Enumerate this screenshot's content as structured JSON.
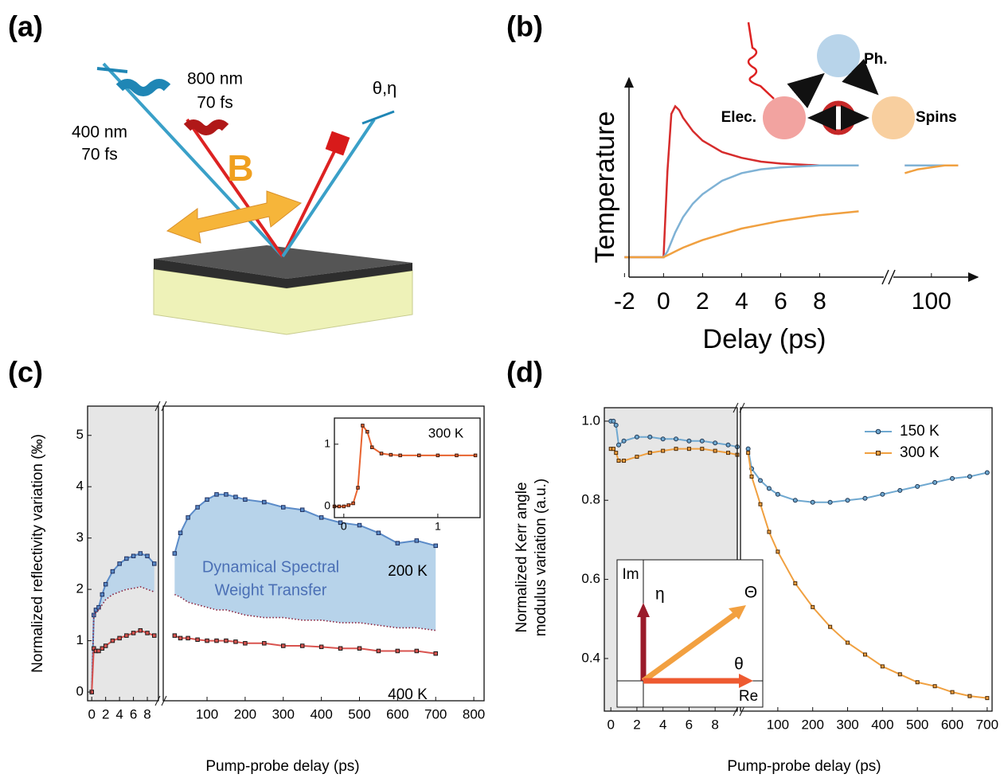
{
  "figure_labels": [
    "(a)",
    "(b)",
    "(c)",
    "(d)"
  ],
  "diagram_a": {
    "pump_label": [
      "400 nm",
      "70 fs"
    ],
    "probe_label": [
      "800 nm",
      "70 fs"
    ],
    "kerr_label": "θ,η",
    "field_label": "B"
  },
  "chart_data": [
    {
      "type": "line",
      "xlabel": "Delay (ps)",
      "ylabel": "Temperature",
      "x_segments": [
        [
          -2.3,
          11
        ],
        [
          95,
          106
        ]
      ],
      "ylim": [
        0,
        1
      ],
      "xticks": [
        -2,
        0,
        2,
        4,
        6,
        8,
        100
      ],
      "x": [
        -2,
        -1,
        0,
        0.2,
        0.4,
        0.6,
        0.8,
        1,
        1.5,
        2,
        3,
        4,
        5,
        6,
        8,
        10,
        11,
        96,
        98,
        100,
        102,
        104
      ],
      "series": [
        {
          "name": "Elec.",
          "color": "#d62c2c",
          "values": [
            0.05,
            0.05,
            0.05,
            0.5,
            0.8,
            0.84,
            0.82,
            0.78,
            0.71,
            0.66,
            0.6,
            0.57,
            0.55,
            0.54,
            0.53,
            0.53,
            null,
            0.53,
            0.53,
            0.53,
            0.53,
            0.53
          ]
        },
        {
          "name": "Ph.",
          "color": "#7fb2d5",
          "values": [
            0.05,
            0.05,
            0.05,
            0.08,
            0.13,
            0.18,
            0.22,
            0.26,
            0.33,
            0.38,
            0.45,
            0.49,
            0.51,
            0.52,
            0.53,
            0.53,
            null,
            0.53,
            0.53,
            0.53,
            0.53,
            0.53
          ]
        },
        {
          "name": "Spins",
          "color": "#f0a040",
          "values": [
            0.05,
            0.05,
            0.05,
            0.06,
            0.07,
            0.08,
            0.09,
            0.1,
            0.12,
            0.14,
            0.17,
            0.2,
            0.22,
            0.24,
            0.27,
            0.29,
            null,
            0.49,
            0.51,
            0.52,
            0.53,
            0.53
          ]
        }
      ]
    },
    {
      "type": "line",
      "xlabel": "Pump-probe delay (ps)",
      "ylabel": [
        "Normalized reflectivity variation (‰)"
      ],
      "x_segments": [
        [
          -0.6,
          9.6
        ],
        [
          -15,
          827
        ]
      ],
      "ylim": [
        -0.17,
        5.57
      ],
      "xticks": [
        0,
        2,
        4,
        6,
        8,
        100,
        200,
        300,
        400,
        500,
        600,
        700,
        800
      ],
      "yticks": [
        0,
        1,
        2,
        3,
        4,
        5
      ],
      "shaded_segment": 0,
      "annotations": [
        "Dynamical Spectral",
        "Weight Transfer"
      ],
      "fill_between": {
        "series": [
          0,
          1
        ],
        "color": "#b7d3ea"
      },
      "x": [
        0,
        0.3,
        0.6,
        1,
        1.5,
        2,
        3,
        4,
        5,
        6,
        7,
        8,
        9,
        15,
        30,
        50,
        75,
        100,
        125,
        150,
        175,
        200,
        250,
        300,
        350,
        400,
        450,
        500,
        550,
        600,
        650,
        700
      ],
      "series": [
        {
          "name": "200 K",
          "color": "#5b8bc8",
          "marker": "square",
          "marker_color": "#1f2f5e",
          "values": [
            0,
            1.5,
            1.6,
            1.65,
            1.9,
            2.1,
            2.35,
            2.5,
            2.6,
            2.65,
            2.7,
            2.65,
            2.5,
            2.7,
            3.1,
            3.4,
            3.6,
            3.75,
            3.85,
            3.85,
            3.8,
            3.75,
            3.7,
            3.6,
            3.55,
            3.4,
            3.3,
            3.25,
            3.1,
            2.9,
            2.95,
            2.85
          ]
        },
        {
          "color": "#8a1f3a",
          "dash": "dotted",
          "values": [
            0,
            1.5,
            1.55,
            1.6,
            1.7,
            1.8,
            1.9,
            1.95,
            2.0,
            2.02,
            2.05,
            2.0,
            1.95,
            1.9,
            1.85,
            1.75,
            1.7,
            1.65,
            1.6,
            1.6,
            1.55,
            1.5,
            1.45,
            1.45,
            1.4,
            1.4,
            1.35,
            1.35,
            1.3,
            1.25,
            1.25,
            1.2
          ]
        },
        {
          "name": "400 K",
          "color": "#d9534f",
          "marker": "square",
          "marker_color": "#1a1a1a",
          "values": [
            0,
            0.85,
            0.8,
            0.8,
            0.85,
            0.9,
            1.0,
            1.05,
            1.1,
            1.15,
            1.2,
            1.15,
            1.1,
            1.1,
            1.05,
            1.05,
            1.02,
            1.0,
            1.0,
            1.0,
            0.98,
            0.95,
            0.95,
            0.9,
            0.9,
            0.88,
            0.85,
            0.85,
            0.8,
            0.8,
            0.8,
            0.75
          ]
        }
      ]
    },
    {
      "type": "line",
      "x_segments": [
        [
          -0.1,
          1.45
        ]
      ],
      "ylim": [
        -0.18,
        1.42
      ],
      "xticks": [
        0,
        1
      ],
      "yticks": [
        0,
        1
      ],
      "x": [
        -0.1,
        -0.05,
        0,
        0.05,
        0.1,
        0.15,
        0.2,
        0.25,
        0.3,
        0.4,
        0.5,
        0.6,
        0.8,
        1,
        1.2,
        1.4
      ],
      "series": [
        {
          "name": "300 K",
          "color": "#e8632f",
          "marker": "square",
          "marker_color": "#3a1a10",
          "values": [
            0,
            0,
            0,
            0.02,
            0.05,
            0.3,
            1.3,
            1.2,
            0.95,
            0.85,
            0.83,
            0.82,
            0.82,
            0.82,
            0.82,
            0.82
          ]
        }
      ]
    },
    {
      "type": "line",
      "xlabel": "Pump-probe delay (ps)",
      "ylabel": [
        "Normalized Kerr angle",
        "modulus variation (a.u.)"
      ],
      "x_segments": [
        [
          -0.5,
          9.7
        ],
        [
          -7,
          714
        ]
      ],
      "ylim": [
        0.267,
        1.034
      ],
      "xticks": [
        0,
        2,
        4,
        6,
        8,
        100,
        200,
        300,
        400,
        500,
        600,
        700
      ],
      "yticks": [
        0.4,
        0.6,
        0.8,
        {
          "value": 1,
          "label": "1.0"
        }
      ],
      "shaded_segment": 0,
      "legend": "upper right",
      "vector_diagram": {
        "im": "Im",
        "re": "Re",
        "eta": "η",
        "theta_mod": "Θ",
        "theta": "θ"
      },
      "x": [
        0,
        0.2,
        0.4,
        0.6,
        1,
        2,
        3,
        4,
        5,
        6,
        7,
        8,
        9,
        9.7,
        15,
        25,
        50,
        75,
        100,
        150,
        200,
        250,
        300,
        350,
        400,
        450,
        500,
        550,
        600,
        650,
        700
      ],
      "series": [
        {
          "name": "150 K",
          "color": "#6fa8d0",
          "marker": "circle",
          "marker_color": "#1f3550",
          "values": [
            1,
            1,
            0.99,
            0.94,
            0.95,
            0.96,
            0.96,
            0.955,
            0.955,
            0.95,
            0.95,
            0.945,
            0.94,
            0.935,
            0.93,
            0.88,
            0.85,
            0.83,
            0.815,
            0.8,
            0.795,
            0.795,
            0.8,
            0.805,
            0.815,
            0.825,
            0.835,
            0.845,
            0.855,
            0.86,
            0.87
          ]
        },
        {
          "name": "300 K",
          "color": "#f0a040",
          "marker": "square",
          "marker_color": "#4a2a08",
          "values": [
            0.93,
            0.93,
            0.92,
            0.9,
            0.9,
            0.91,
            0.92,
            0.925,
            0.93,
            0.93,
            0.93,
            0.925,
            0.92,
            0.915,
            0.92,
            0.86,
            0.79,
            0.72,
            0.67,
            0.59,
            0.53,
            0.48,
            0.44,
            0.41,
            0.38,
            0.36,
            0.34,
            0.33,
            0.315,
            0.305,
            0.3
          ]
        }
      ]
    }
  ]
}
